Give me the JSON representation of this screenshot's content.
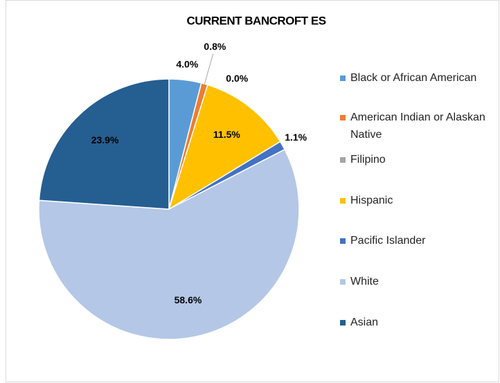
{
  "chart_data": {
    "type": "pie",
    "title": "CURRENT BANCROFT ES",
    "categories": [
      "Black or African American",
      "American Indian or Alaskan Native",
      "Filipino",
      "Hispanic",
      "Pacific Islander",
      "White",
      "Asian"
    ],
    "values": [
      4.0,
      0.8,
      0.0,
      11.5,
      1.1,
      58.6,
      23.9
    ],
    "value_labels": [
      "4.0%",
      "0.8%",
      "0.0%",
      "11.5%",
      "1.1%",
      "58.6%",
      "23.9%"
    ],
    "colors": [
      "#5b9bd5",
      "#ed7d31",
      "#a5a5a5",
      "#ffc000",
      "#4472c4",
      "#b4c7e7",
      "#255e91"
    ],
    "legend": "right"
  }
}
